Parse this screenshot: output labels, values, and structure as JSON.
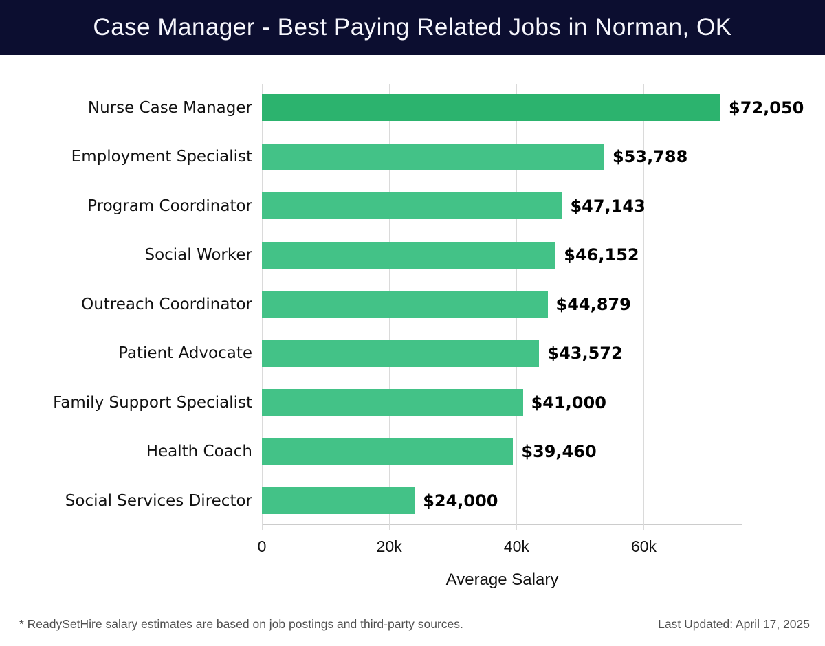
{
  "colors": {
    "header_bg": "#0c0e30",
    "title_text": "#f6f6fc",
    "bar_first": "#2cb36e",
    "bar_rest": "#43c287",
    "grid": "#dadada",
    "axis_line": "#cccccc",
    "footer_text": "#4f4f4f"
  },
  "chart_data": {
    "type": "bar",
    "orientation": "horizontal",
    "title": "Case Manager - Best Paying Related Jobs in Norman, OK",
    "categories": [
      "Nurse Case Manager",
      "Employment Specialist",
      "Program Coordinator",
      "Social Worker",
      "Outreach Coordinator",
      "Patient Advocate",
      "Family Support Specialist",
      "Health Coach",
      "Social Services Director"
    ],
    "values": [
      72050,
      53788,
      47143,
      46152,
      44879,
      43572,
      41000,
      39460,
      24000
    ],
    "value_labels": [
      "$72,050",
      "$53,788",
      "$47,143",
      "$46,152",
      "$44,879",
      "$43,572",
      "$41,000",
      "$39,460",
      "$24,000"
    ],
    "xlabel": "Average Salary",
    "xlim": [
      0,
      75500
    ],
    "xticks": [
      {
        "value": 0,
        "label": "0"
      },
      {
        "value": 20000,
        "label": "20k"
      },
      {
        "value": 40000,
        "label": "40k"
      },
      {
        "value": 60000,
        "label": "60k"
      }
    ],
    "grid": true,
    "legend": false
  },
  "footer": {
    "note": "* ReadySetHire salary estimates are based on job postings and third-party sources.",
    "last_updated": "Last Updated: April 17, 2025"
  }
}
